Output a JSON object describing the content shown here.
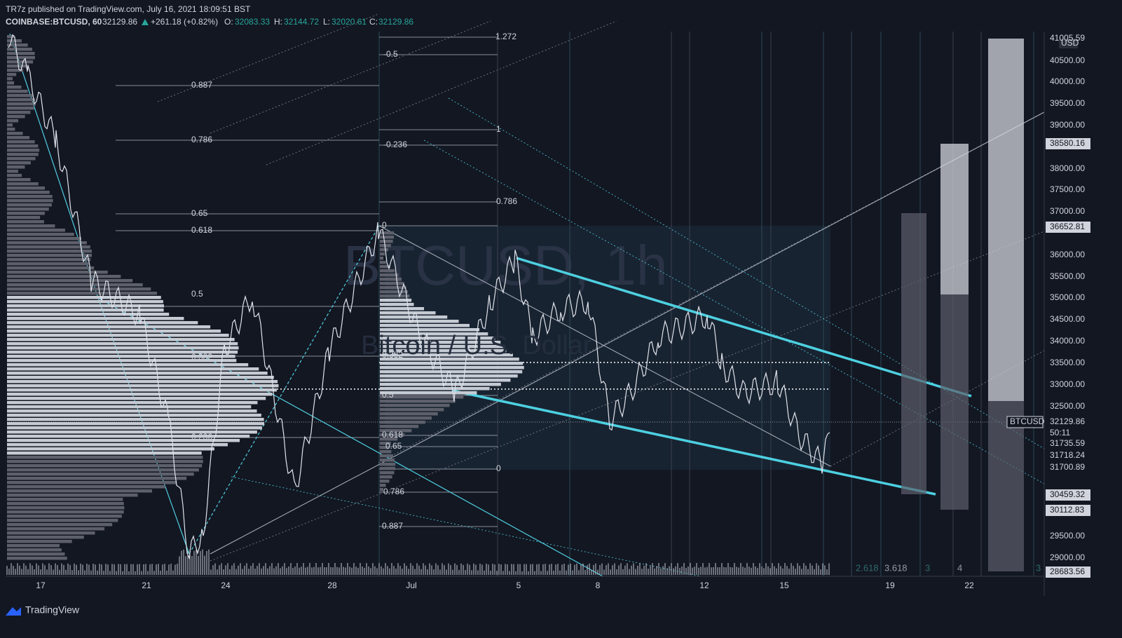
{
  "header": {
    "publisher": "TR7z published on TradingView.com, July 16, 2021 18:09:51 BST",
    "symbol": "COINBASE:BTCUSD, 60",
    "price": "32129.86",
    "change": "+261.18 (+0.82%)",
    "open_label": "O:",
    "open": "32083.33",
    "high_label": "H:",
    "high": "32144.72",
    "low_label": "L:",
    "low": "32020.61",
    "close_label": "C:",
    "close": "32129.86"
  },
  "watermark": {
    "title": "BTCUSD, 1h",
    "subtitle": "Bitcoin / U.S. Dollar"
  },
  "price_axis": {
    "currency": "USD",
    "labels": [
      "40500.00",
      "40000.00",
      "39500.00",
      "39000.00",
      "38000.00",
      "37500.00",
      "37000.00",
      "36000.00",
      "35500.00",
      "35000.00",
      "34500.00",
      "34000.00",
      "33500.00",
      "33000.00",
      "32500.00",
      "29500.00",
      "29000.00"
    ],
    "badges": [
      "41005.59",
      "38580.16",
      "36652.81",
      "32129.86",
      "50:11",
      "31735.59",
      "31718.24",
      "31700.89",
      "30459.32",
      "30112.83",
      "28683.56"
    ],
    "symbol_badge": "BTCUSD"
  },
  "date_axis": {
    "labels": [
      "17",
      "21",
      "24",
      "28",
      "Jul",
      "5",
      "8",
      "12",
      "15",
      "19",
      "22"
    ]
  },
  "fib_left": [
    "0.887",
    "0.786",
    "0.65",
    "0.618",
    "0.5",
    "0.382",
    "0.236"
  ],
  "fib_middle": [
    "1.272",
    "-0.5",
    "1",
    "-0.236",
    "0.786",
    "0",
    "0.382",
    "0.5",
    "0.618",
    "0.65",
    "0",
    "0.786",
    "0.887"
  ],
  "fib_extension": [
    "2.618",
    "3.618",
    "3",
    "4",
    "3"
  ],
  "footer": {
    "brand": "TradingView"
  }
}
